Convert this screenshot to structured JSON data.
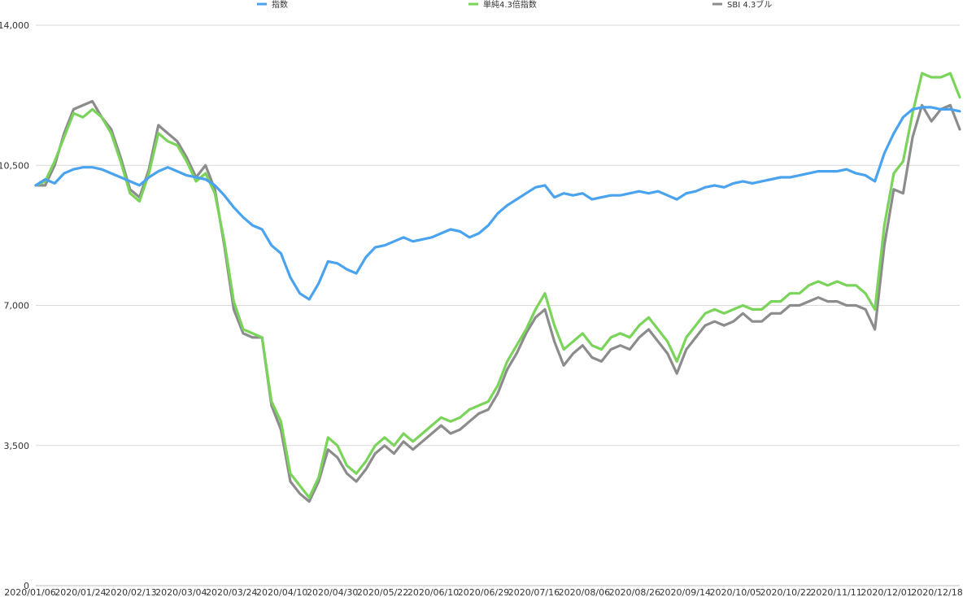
{
  "chart_data": {
    "type": "line",
    "title": "",
    "xlabel": "",
    "ylabel": "",
    "ylim": [
      0,
      14000
    ],
    "y_ticks": [
      "0",
      "3,500",
      "7,000",
      "10,500",
      "14,000"
    ],
    "y_tick_values": [
      0,
      3500,
      7000,
      10500,
      14000
    ],
    "grid": true,
    "legend_position": "top",
    "x_tick_labels": [
      "2020/01/06",
      "2020/01/24",
      "2020/02/13",
      "2020/03/04",
      "2020/03/24",
      "2020/04/10",
      "2020/04/30",
      "2020/05/22",
      "2020/06/10",
      "2020/06/29",
      "2020/07/16",
      "2020/08/06",
      "2020/08/26",
      "2020/09/14",
      "2020/10/05",
      "2020/10/22",
      "2020/11/11",
      "2020/12/01",
      "2020/12/18"
    ],
    "series": [
      {
        "name": "指数",
        "color": "#4aa3ee",
        "points": [
          [
            0,
            10000
          ],
          [
            1,
            10150
          ],
          [
            2,
            10050
          ],
          [
            3,
            10300
          ],
          [
            4,
            10400
          ],
          [
            5,
            10450
          ],
          [
            6,
            10450
          ],
          [
            7,
            10400
          ],
          [
            8,
            10300
          ],
          [
            9,
            10200
          ],
          [
            10,
            10100
          ],
          [
            11,
            10000
          ],
          [
            12,
            10200
          ],
          [
            13,
            10350
          ],
          [
            14,
            10450
          ],
          [
            15,
            10350
          ],
          [
            16,
            10250
          ],
          [
            17,
            10200
          ],
          [
            18,
            10150
          ],
          [
            19,
            10000
          ],
          [
            20,
            9750
          ],
          [
            21,
            9450
          ],
          [
            22,
            9200
          ],
          [
            23,
            9000
          ],
          [
            24,
            8900
          ],
          [
            25,
            8500
          ],
          [
            26,
            8300
          ],
          [
            27,
            7700
          ],
          [
            28,
            7300
          ],
          [
            29,
            7150
          ],
          [
            30,
            7550
          ],
          [
            31,
            8100
          ],
          [
            32,
            8050
          ],
          [
            33,
            7900
          ],
          [
            34,
            7800
          ],
          [
            35,
            8200
          ],
          [
            36,
            8450
          ],
          [
            37,
            8500
          ],
          [
            38,
            8600
          ],
          [
            39,
            8700
          ],
          [
            40,
            8600
          ],
          [
            41,
            8650
          ],
          [
            42,
            8700
          ],
          [
            43,
            8800
          ],
          [
            44,
            8900
          ],
          [
            45,
            8850
          ],
          [
            46,
            8700
          ],
          [
            47,
            8800
          ],
          [
            48,
            9000
          ],
          [
            49,
            9300
          ],
          [
            50,
            9500
          ],
          [
            51,
            9650
          ],
          [
            52,
            9800
          ],
          [
            53,
            9950
          ],
          [
            54,
            10000
          ],
          [
            55,
            9700
          ],
          [
            56,
            9800
          ],
          [
            57,
            9750
          ],
          [
            58,
            9800
          ],
          [
            59,
            9650
          ],
          [
            60,
            9700
          ],
          [
            61,
            9750
          ],
          [
            62,
            9750
          ],
          [
            63,
            9800
          ],
          [
            64,
            9850
          ],
          [
            65,
            9800
          ],
          [
            66,
            9850
          ],
          [
            67,
            9750
          ],
          [
            68,
            9650
          ],
          [
            69,
            9800
          ],
          [
            70,
            9850
          ],
          [
            71,
            9950
          ],
          [
            72,
            10000
          ],
          [
            73,
            9950
          ],
          [
            74,
            10050
          ],
          [
            75,
            10100
          ],
          [
            76,
            10050
          ],
          [
            77,
            10100
          ],
          [
            78,
            10150
          ],
          [
            79,
            10200
          ],
          [
            80,
            10200
          ],
          [
            81,
            10250
          ],
          [
            82,
            10300
          ],
          [
            83,
            10350
          ],
          [
            84,
            10350
          ],
          [
            85,
            10350
          ],
          [
            86,
            10400
          ],
          [
            87,
            10300
          ],
          [
            88,
            10250
          ],
          [
            89,
            10100
          ],
          [
            90,
            10800
          ],
          [
            91,
            11300
          ],
          [
            92,
            11700
          ],
          [
            93,
            11900
          ],
          [
            94,
            11950
          ],
          [
            95,
            11950
          ],
          [
            96,
            11900
          ],
          [
            97,
            11900
          ],
          [
            98,
            11850
          ]
        ]
      },
      {
        "name": "単純4.3倍指数",
        "color": "#7ad45a",
        "points": [
          [
            0,
            10000
          ],
          [
            1,
            10100
          ],
          [
            2,
            10600
          ],
          [
            3,
            11200
          ],
          [
            4,
            11800
          ],
          [
            5,
            11700
          ],
          [
            6,
            11900
          ],
          [
            7,
            11700
          ],
          [
            8,
            11300
          ],
          [
            9,
            10600
          ],
          [
            10,
            9800
          ],
          [
            11,
            9600
          ],
          [
            12,
            10300
          ],
          [
            13,
            11300
          ],
          [
            14,
            11100
          ],
          [
            15,
            11000
          ],
          [
            16,
            10600
          ],
          [
            17,
            10100
          ],
          [
            18,
            10300
          ],
          [
            19,
            9800
          ],
          [
            20,
            8600
          ],
          [
            21,
            7100
          ],
          [
            22,
            6400
          ],
          [
            23,
            6300
          ],
          [
            24,
            6200
          ],
          [
            25,
            4600
          ],
          [
            26,
            4100
          ],
          [
            27,
            2800
          ],
          [
            28,
            2500
          ],
          [
            29,
            2200
          ],
          [
            30,
            2700
          ],
          [
            31,
            3700
          ],
          [
            32,
            3500
          ],
          [
            33,
            3000
          ],
          [
            34,
            2800
          ],
          [
            35,
            3100
          ],
          [
            36,
            3500
          ],
          [
            37,
            3700
          ],
          [
            38,
            3500
          ],
          [
            39,
            3800
          ],
          [
            40,
            3600
          ],
          [
            41,
            3800
          ],
          [
            42,
            4000
          ],
          [
            43,
            4200
          ],
          [
            44,
            4100
          ],
          [
            45,
            4200
          ],
          [
            46,
            4400
          ],
          [
            47,
            4500
          ],
          [
            48,
            4600
          ],
          [
            49,
            5000
          ],
          [
            50,
            5600
          ],
          [
            51,
            6000
          ],
          [
            52,
            6400
          ],
          [
            53,
            6900
          ],
          [
            54,
            7300
          ],
          [
            55,
            6500
          ],
          [
            56,
            5900
          ],
          [
            57,
            6100
          ],
          [
            58,
            6300
          ],
          [
            59,
            6000
          ],
          [
            60,
            5900
          ],
          [
            61,
            6200
          ],
          [
            62,
            6300
          ],
          [
            63,
            6200
          ],
          [
            64,
            6500
          ],
          [
            65,
            6700
          ],
          [
            66,
            6400
          ],
          [
            67,
            6100
          ],
          [
            68,
            5600
          ],
          [
            69,
            6200
          ],
          [
            70,
            6500
          ],
          [
            71,
            6800
          ],
          [
            72,
            6900
          ],
          [
            73,
            6800
          ],
          [
            74,
            6900
          ],
          [
            75,
            7000
          ],
          [
            76,
            6900
          ],
          [
            77,
            6900
          ],
          [
            78,
            7100
          ],
          [
            79,
            7100
          ],
          [
            80,
            7300
          ],
          [
            81,
            7300
          ],
          [
            82,
            7500
          ],
          [
            83,
            7600
          ],
          [
            84,
            7500
          ],
          [
            85,
            7600
          ],
          [
            86,
            7500
          ],
          [
            87,
            7500
          ],
          [
            88,
            7300
          ],
          [
            89,
            6900
          ],
          [
            90,
            9000
          ],
          [
            91,
            10300
          ],
          [
            92,
            10600
          ],
          [
            93,
            11800
          ],
          [
            94,
            12800
          ],
          [
            95,
            12700
          ],
          [
            96,
            12700
          ],
          [
            97,
            12800
          ],
          [
            98,
            12200
          ]
        ]
      },
      {
        "name": "SBI 4.3ブル",
        "color": "#8c8c8c",
        "points": [
          [
            0,
            10000
          ],
          [
            1,
            10000
          ],
          [
            2,
            10500
          ],
          [
            3,
            11300
          ],
          [
            4,
            11900
          ],
          [
            5,
            12000
          ],
          [
            6,
            12100
          ],
          [
            7,
            11700
          ],
          [
            8,
            11400
          ],
          [
            9,
            10700
          ],
          [
            10,
            9900
          ],
          [
            11,
            9700
          ],
          [
            12,
            10400
          ],
          [
            13,
            11500
          ],
          [
            14,
            11300
          ],
          [
            15,
            11100
          ],
          [
            16,
            10700
          ],
          [
            17,
            10200
          ],
          [
            18,
            10500
          ],
          [
            19,
            9900
          ],
          [
            20,
            8500
          ],
          [
            21,
            6900
          ],
          [
            22,
            6300
          ],
          [
            23,
            6200
          ],
          [
            24,
            6200
          ],
          [
            25,
            4500
          ],
          [
            26,
            3900
          ],
          [
            27,
            2600
          ],
          [
            28,
            2300
          ],
          [
            29,
            2100
          ],
          [
            30,
            2600
          ],
          [
            31,
            3400
          ],
          [
            32,
            3200
          ],
          [
            33,
            2800
          ],
          [
            34,
            2600
          ],
          [
            35,
            2900
          ],
          [
            36,
            3300
          ],
          [
            37,
            3500
          ],
          [
            38,
            3300
          ],
          [
            39,
            3600
          ],
          [
            40,
            3400
          ],
          [
            41,
            3600
          ],
          [
            42,
            3800
          ],
          [
            43,
            4000
          ],
          [
            44,
            3800
          ],
          [
            45,
            3900
          ],
          [
            46,
            4100
          ],
          [
            47,
            4300
          ],
          [
            48,
            4400
          ],
          [
            49,
            4800
          ],
          [
            50,
            5400
          ],
          [
            51,
            5800
          ],
          [
            52,
            6300
          ],
          [
            53,
            6700
          ],
          [
            54,
            6900
          ],
          [
            55,
            6100
          ],
          [
            56,
            5500
          ],
          [
            57,
            5800
          ],
          [
            58,
            6000
          ],
          [
            59,
            5700
          ],
          [
            60,
            5600
          ],
          [
            61,
            5900
          ],
          [
            62,
            6000
          ],
          [
            63,
            5900
          ],
          [
            64,
            6200
          ],
          [
            65,
            6400
          ],
          [
            66,
            6100
          ],
          [
            67,
            5800
          ],
          [
            68,
            5300
          ],
          [
            69,
            5900
          ],
          [
            70,
            6200
          ],
          [
            71,
            6500
          ],
          [
            72,
            6600
          ],
          [
            73,
            6500
          ],
          [
            74,
            6600
          ],
          [
            75,
            6800
          ],
          [
            76,
            6600
          ],
          [
            77,
            6600
          ],
          [
            78,
            6800
          ],
          [
            79,
            6800
          ],
          [
            80,
            7000
          ],
          [
            81,
            7000
          ],
          [
            82,
            7100
          ],
          [
            83,
            7200
          ],
          [
            84,
            7100
          ],
          [
            85,
            7100
          ],
          [
            86,
            7000
          ],
          [
            87,
            7000
          ],
          [
            88,
            6900
          ],
          [
            89,
            6400
          ],
          [
            90,
            8500
          ],
          [
            91,
            9900
          ],
          [
            92,
            9800
          ],
          [
            93,
            11200
          ],
          [
            94,
            12000
          ],
          [
            95,
            11600
          ],
          [
            96,
            11900
          ],
          [
            97,
            12000
          ],
          [
            98,
            11400
          ]
        ]
      }
    ]
  }
}
